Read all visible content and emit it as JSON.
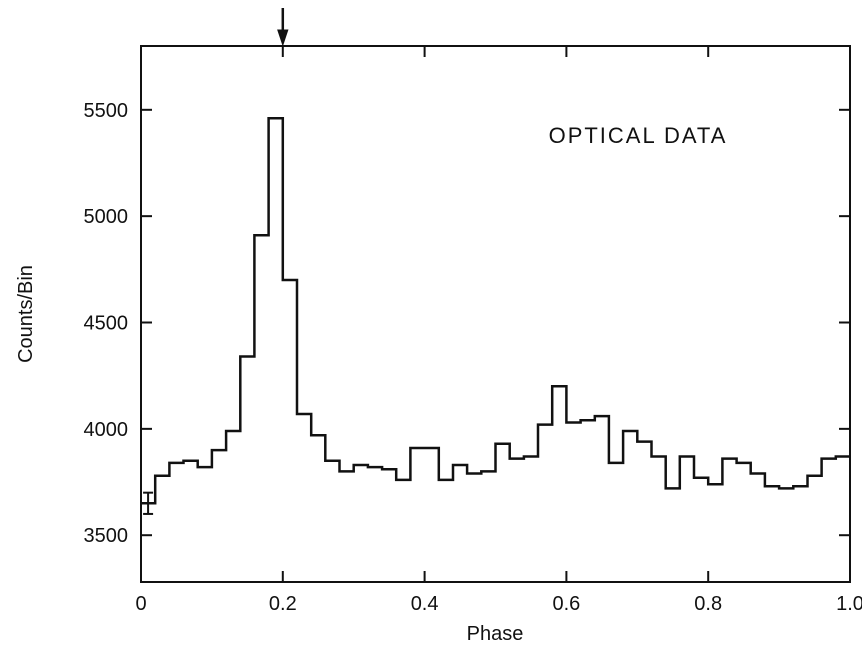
{
  "chart_data": {
    "type": "line",
    "step": true,
    "annotation": "OPTICAL DATA",
    "xlabel": "Phase",
    "ylabel": "Counts/Bin",
    "xlim": [
      0,
      1.0
    ],
    "ylim": [
      3280,
      5800
    ],
    "x_ticks": [
      0,
      0.2,
      0.4,
      0.6,
      0.8,
      1.0
    ],
    "x_tick_labels": [
      "0",
      "0.2",
      "0.4",
      "0.6",
      "0.8",
      "1.0"
    ],
    "y_ticks": [
      3500,
      4000,
      4500,
      5000,
      5500
    ],
    "y_tick_labels": [
      "3500",
      "4000",
      "4500",
      "5000",
      "5500"
    ],
    "marker_arrow_phase": 0.2,
    "error_bar": {
      "x": 0.01,
      "y": 3650,
      "error": 50
    },
    "bin_width": 0.02,
    "series": [
      {
        "x": [
          0.0,
          0.02,
          0.04,
          0.06,
          0.08,
          0.1,
          0.12,
          0.14,
          0.16,
          0.18,
          0.2,
          0.22,
          0.24,
          0.26,
          0.28,
          0.3,
          0.32,
          0.34,
          0.36,
          0.38,
          0.4,
          0.42,
          0.44,
          0.46,
          0.48,
          0.5,
          0.52,
          0.54,
          0.56,
          0.58,
          0.6,
          0.62,
          0.64,
          0.66,
          0.68,
          0.7,
          0.72,
          0.74,
          0.76,
          0.78,
          0.8,
          0.82,
          0.84,
          0.86,
          0.88,
          0.9,
          0.92,
          0.94,
          0.96,
          0.98
        ],
        "values": [
          3650,
          3780,
          3840,
          3850,
          3820,
          3900,
          3990,
          4340,
          4910,
          5460,
          4700,
          4070,
          3970,
          3850,
          3800,
          3830,
          3820,
          3810,
          3760,
          3910,
          3910,
          3760,
          3830,
          3790,
          3800,
          3930,
          3860,
          3870,
          4020,
          4200,
          4030,
          4040,
          4060,
          3840,
          3990,
          3940,
          3870,
          3720,
          3870,
          3770,
          3740,
          3860,
          3840,
          3790,
          3730,
          3720,
          3730,
          3780,
          3860,
          3870
        ]
      }
    ]
  }
}
